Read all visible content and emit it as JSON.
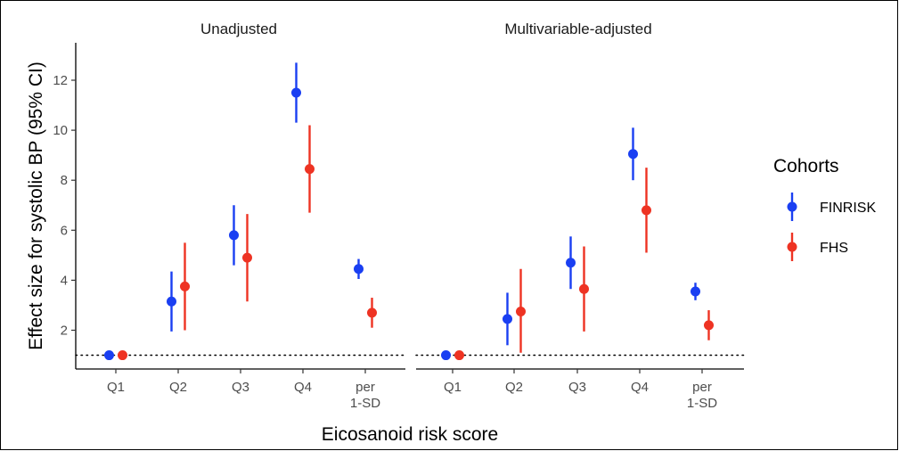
{
  "chart_data": {
    "type": "scatter",
    "subtype": "pointrange",
    "xlabel": "Eicosanoid risk score",
    "ylabel": "Effect size for systolic BP (95% CI)",
    "categories": [
      "Q1",
      "Q2",
      "Q3",
      "Q4",
      "per\n1-SD"
    ],
    "category_lines": [
      [
        "Q1"
      ],
      [
        "Q2"
      ],
      [
        "Q3"
      ],
      [
        "Q4"
      ],
      [
        "per",
        "1-SD"
      ]
    ],
    "yticks": [
      2,
      4,
      6,
      8,
      10,
      12
    ],
    "ylim": [
      0.5,
      13.2
    ],
    "reference_line": {
      "y": 1,
      "style": "dotted"
    },
    "grid": false,
    "legend": {
      "title": "Cohorts",
      "placement": "right",
      "entries": [
        {
          "name": "FINRISK",
          "color": "#1a3ff2"
        },
        {
          "name": "FHS",
          "color": "#ee3323"
        }
      ]
    },
    "panels": [
      {
        "title": "Unadjusted",
        "series": [
          {
            "name": "FINRISK",
            "color": "#1a3ff2",
            "values": [
              1.0,
              3.15,
              5.8,
              11.5,
              4.45
            ],
            "lower": [
              1.0,
              1.95,
              4.6,
              10.3,
              4.05
            ],
            "upper": [
              1.0,
              4.35,
              7.0,
              12.7,
              4.85
            ]
          },
          {
            "name": "FHS",
            "color": "#ee3323",
            "values": [
              1.0,
              3.75,
              4.9,
              8.45,
              2.7
            ],
            "lower": [
              1.0,
              2.0,
              3.15,
              6.7,
              2.1
            ],
            "upper": [
              1.0,
              5.5,
              6.65,
              10.2,
              3.3
            ]
          }
        ]
      },
      {
        "title": "Multivariable-adjusted",
        "series": [
          {
            "name": "FINRISK",
            "color": "#1a3ff2",
            "values": [
              1.0,
              2.45,
              4.7,
              9.05,
              3.55
            ],
            "lower": [
              1.0,
              1.4,
              3.65,
              8.0,
              3.2
            ],
            "upper": [
              1.0,
              3.5,
              5.75,
              10.1,
              3.9
            ]
          },
          {
            "name": "FHS",
            "color": "#ee3323",
            "values": [
              1.0,
              2.75,
              3.65,
              6.8,
              2.2
            ],
            "lower": [
              1.0,
              1.1,
              1.95,
              5.1,
              1.6
            ],
            "upper": [
              1.0,
              4.45,
              5.35,
              8.5,
              2.8
            ]
          }
        ]
      }
    ]
  }
}
